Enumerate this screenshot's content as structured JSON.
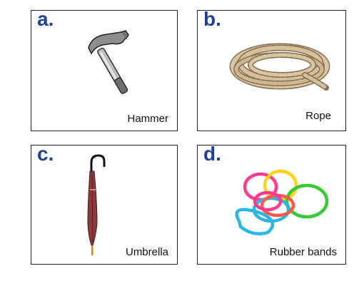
{
  "cards": [
    {
      "letter": "a.",
      "label": "Hammer",
      "icon": "hammer-icon"
    },
    {
      "letter": "b.",
      "label": "Rope",
      "icon": "rope-icon"
    },
    {
      "letter": "c.",
      "label": "Umbrella",
      "icon": "umbrella-icon"
    },
    {
      "letter": "d.",
      "label": "Rubber bands",
      "icon": "rubber-bands-icon"
    }
  ],
  "colors": {
    "letter": "#1f3f9a",
    "border": "#222222",
    "umbrella": "#8a3a3a",
    "bands": [
      "#ff3b8f",
      "#ffd21a",
      "#33cc33",
      "#2ab7e6",
      "#ff5a4a"
    ]
  }
}
